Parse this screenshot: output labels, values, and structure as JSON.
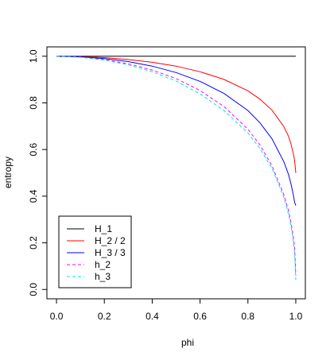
{
  "chart_data": {
    "type": "line",
    "title": "",
    "xlabel": "phi",
    "ylabel": "entropy",
    "xlim": [
      -0.04,
      1.04
    ],
    "ylim": [
      -0.04,
      1.04
    ],
    "xticks": [
      "0.0",
      "0.2",
      "0.4",
      "0.6",
      "0.8",
      "1.0"
    ],
    "yticks": [
      "0.0",
      "0.2",
      "0.4",
      "0.6",
      "0.8",
      "1.0"
    ],
    "grid": false,
    "legend_position": "bottom-left",
    "series": [
      {
        "name": "H_1",
        "color": "#000000",
        "dash": "solid",
        "x": [
          0.0,
          1.0
        ],
        "y": [
          1.0,
          1.0
        ]
      },
      {
        "name": "H_2 / 2",
        "color": "#ff0000",
        "dash": "solid",
        "x": [
          0.0,
          0.1,
          0.2,
          0.3,
          0.4,
          0.5,
          0.6,
          0.7,
          0.8,
          0.85,
          0.9,
          0.95,
          0.97,
          0.98,
          0.99,
          0.995,
          1.0
        ],
        "y": [
          1.0,
          0.9985,
          0.994,
          0.986,
          0.974,
          0.9575,
          0.9335,
          0.9005,
          0.8515,
          0.816,
          0.7695,
          0.6985,
          0.656,
          0.624,
          0.581,
          0.5525,
          0.5
        ]
      },
      {
        "name": "H_3 / 3",
        "color": "#0000ff",
        "dash": "solid",
        "x": [
          0.0,
          0.1,
          0.2,
          0.3,
          0.4,
          0.5,
          0.6,
          0.7,
          0.8,
          0.85,
          0.9,
          0.95,
          0.97,
          0.98,
          0.99,
          0.995,
          1.0
        ],
        "y": [
          1.0,
          0.9975,
          0.99,
          0.977,
          0.9575,
          0.93,
          0.892,
          0.8405,
          0.767,
          0.715,
          0.647,
          0.548,
          0.4925,
          0.453,
          0.404,
          0.373,
          0.36
        ]
      },
      {
        "name": "h_2",
        "color": "#ff00ff",
        "dash": "dashed",
        "x": [
          0.0,
          0.1,
          0.2,
          0.3,
          0.4,
          0.5,
          0.6,
          0.7,
          0.8,
          0.85,
          0.9,
          0.95,
          0.97,
          0.98,
          0.99,
          0.995,
          1.0
        ],
        "y": [
          1.0,
          0.996,
          0.9855,
          0.9675,
          0.941,
          0.904,
          0.853,
          0.784,
          0.687,
          0.6195,
          0.531,
          0.407,
          0.337,
          0.288,
          0.223,
          0.181,
          0.06
        ]
      },
      {
        "name": "h_3",
        "color": "#00e5ee",
        "dash": "dashed",
        "x": [
          0.0,
          0.1,
          0.2,
          0.3,
          0.4,
          0.5,
          0.6,
          0.7,
          0.8,
          0.85,
          0.9,
          0.95,
          0.97,
          0.98,
          0.99,
          0.995,
          1.0
        ],
        "y": [
          1.0,
          0.9955,
          0.9835,
          0.963,
          0.9335,
          0.893,
          0.8385,
          0.767,
          0.6715,
          0.605,
          0.52,
          0.396,
          0.323,
          0.272,
          0.203,
          0.157,
          0.04
        ]
      }
    ]
  }
}
